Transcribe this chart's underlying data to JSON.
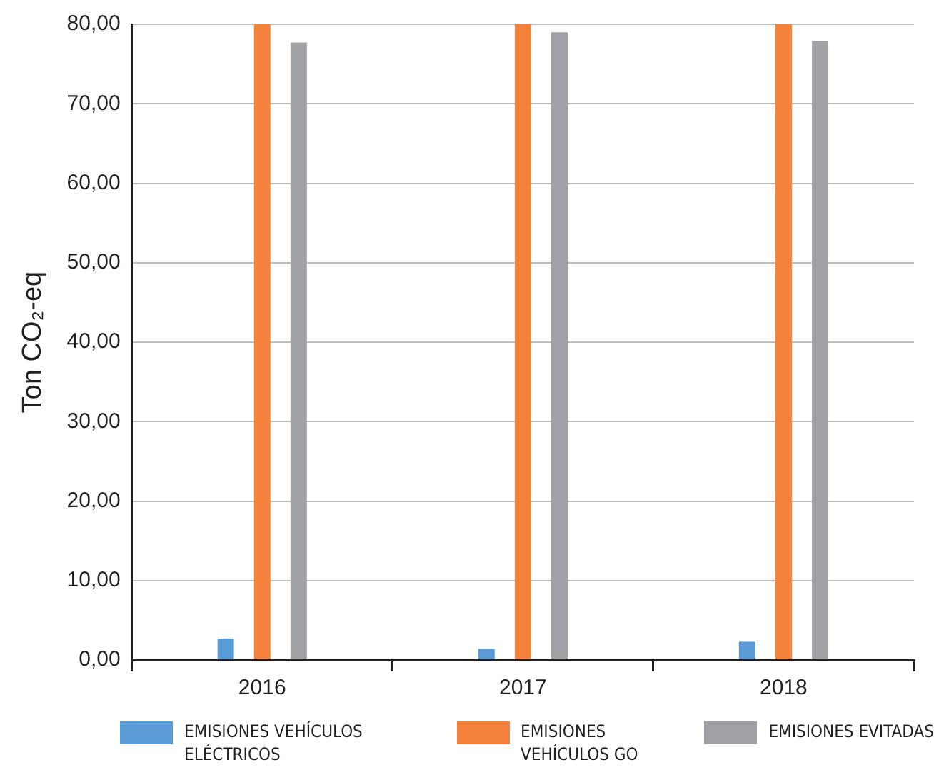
{
  "chart_data": {
    "type": "bar",
    "ylabel": "Ton CO₂-eq",
    "categories": [
      "2016",
      "2017",
      "2018"
    ],
    "series": [
      {
        "name": "EMISIONES VEHÍCULOS ELÉCTRICOS",
        "color": "#5b9bd5",
        "values": [
          2.7,
          1.4,
          2.3
        ]
      },
      {
        "name": "EMISIONES VEHÍCULOS GO",
        "color": "#f5823c",
        "values": [
          80,
          80,
          80
        ]
      },
      {
        "name": "EMISIONES EVITADAS",
        "color": "#a0a1a5",
        "values": [
          77.7,
          79.0,
          77.9
        ]
      }
    ],
    "ylim": [
      0,
      80
    ],
    "yticks": [
      {
        "value": 0,
        "label": "0,00"
      },
      {
        "value": 10,
        "label": "10,00"
      },
      {
        "value": 20,
        "label": "20,00"
      },
      {
        "value": 30,
        "label": "30,00"
      },
      {
        "value": 40,
        "label": "40,00"
      },
      {
        "value": 50,
        "label": "50,00"
      },
      {
        "value": 60,
        "label": "60,00"
      },
      {
        "value": 70,
        "label": "70,00"
      },
      {
        "value": 80,
        "label": "80,00"
      }
    ],
    "grid": "y",
    "legend": "bottom"
  }
}
